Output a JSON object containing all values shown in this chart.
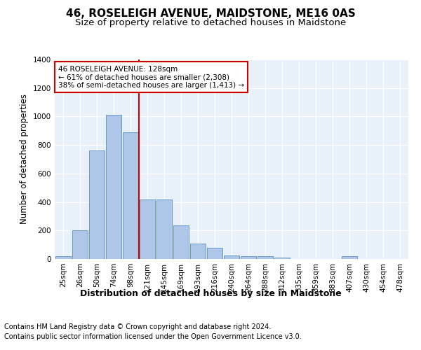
{
  "title": "46, ROSELEIGH AVENUE, MAIDSTONE, ME16 0AS",
  "subtitle": "Size of property relative to detached houses in Maidstone",
  "xlabel": "Distribution of detached houses by size in Maidstone",
  "ylabel": "Number of detached properties",
  "categories": [
    "25sqm",
    "26sqm",
    "50sqm",
    "74sqm",
    "98sqm",
    "121sqm",
    "145sqm",
    "169sqm",
    "193sqm",
    "216sqm",
    "240sqm",
    "264sqm",
    "288sqm",
    "312sqm",
    "335sqm",
    "359sqm",
    "383sqm",
    "407sqm",
    "430sqm",
    "454sqm",
    "478sqm"
  ],
  "bar_values": [
    20,
    200,
    760,
    1010,
    890,
    420,
    420,
    238,
    110,
    78,
    25,
    22,
    18,
    10,
    2,
    0,
    0,
    18,
    0,
    0,
    0
  ],
  "bar_color": "#aec6e8",
  "bar_edge_color": "#5a8fc2",
  "vline_color": "#cc0000",
  "vline_x_index": 4.5,
  "annotation_text": "46 ROSELEIGH AVENUE: 128sqm\n← 61% of detached houses are smaller (2,308)\n38% of semi-detached houses are larger (1,413) →",
  "annotation_box_facecolor": "#ffffff",
  "annotation_box_edgecolor": "#cc0000",
  "ylim": [
    0,
    1400
  ],
  "yticks": [
    0,
    200,
    400,
    600,
    800,
    1000,
    1200,
    1400
  ],
  "background_color": "#e8f0fa",
  "grid_color": "#ffffff",
  "footer_line1": "Contains HM Land Registry data © Crown copyright and database right 2024.",
  "footer_line2": "Contains public sector information licensed under the Open Government Licence v3.0.",
  "title_fontsize": 11,
  "subtitle_fontsize": 9.5,
  "xlabel_fontsize": 9,
  "ylabel_fontsize": 8.5,
  "tick_fontsize": 7.5,
  "annotation_fontsize": 7.5,
  "footer_fontsize": 7
}
